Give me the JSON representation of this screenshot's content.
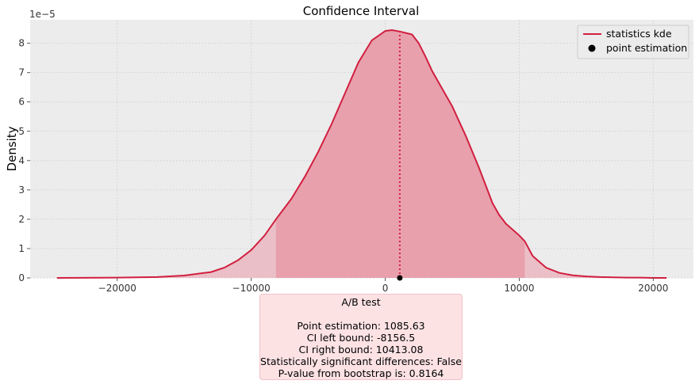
{
  "chart_data": {
    "type": "area",
    "title": "Confidence Interval",
    "ylabel": "Density",
    "xlabel": "",
    "y_scale_note": "1e−5",
    "xlim": [
      -26500,
      23000
    ],
    "ylim": [
      0,
      8.8
    ],
    "x_ticks": [
      -20000,
      -10000,
      0,
      10000,
      20000
    ],
    "x_tick_labels": [
      "−20000",
      "−10000",
      "0",
      "10000",
      "20000"
    ],
    "y_ticks": [
      0,
      1,
      2,
      3,
      4,
      5,
      6,
      7,
      8
    ],
    "grid": true,
    "legend_position": "top-right",
    "series": [
      {
        "name": "statistics kde",
        "color": "#d11f3f",
        "x": [
          -24500,
          -20000,
          -17000,
          -15000,
          -13000,
          -12000,
          -11000,
          -10000,
          -9000,
          -8156.5,
          -7000,
          -6000,
          -5000,
          -4000,
          -3000,
          -2000,
          -1000,
          0,
          500,
          1085.63,
          2000,
          2500,
          3000,
          3500,
          4000,
          5000,
          6000,
          7000,
          8000,
          8500,
          9000,
          10000,
          10413.08,
          11000,
          12000,
          13000,
          14000,
          15000,
          16000,
          17000,
          18000,
          19000,
          20000,
          21000
        ],
        "y": [
          0.0,
          0.01,
          0.03,
          0.08,
          0.2,
          0.35,
          0.6,
          0.95,
          1.45,
          2.0,
          2.7,
          3.45,
          4.3,
          5.25,
          6.3,
          7.35,
          8.1,
          8.42,
          8.45,
          8.4,
          8.3,
          8.0,
          7.55,
          7.05,
          6.65,
          5.85,
          4.85,
          3.75,
          2.55,
          2.15,
          1.85,
          1.45,
          1.25,
          0.75,
          0.35,
          0.17,
          0.09,
          0.05,
          0.03,
          0.02,
          0.01,
          0.01,
          0.0,
          0.0
        ]
      }
    ],
    "ci_left": -8156.5,
    "ci_right": 10413.08,
    "point_estimation": 1085.63,
    "point_label": "point estimation",
    "fill_color_inside": "#e8a0ad",
    "fill_color_outside": "#ebbfc7",
    "line_color": "#d11f3f",
    "point_color": "#000000"
  },
  "summary": {
    "title": "A/B test",
    "point_line": "Point estimation: 1085.63",
    "ci_left_line": "CI left bound: -8156.5",
    "ci_right_line": "CI right bound: 10413.08",
    "significance_line": "Statistically significant differences: False",
    "pvalue_line": "P-value from bootstrap is: 0.8164"
  }
}
